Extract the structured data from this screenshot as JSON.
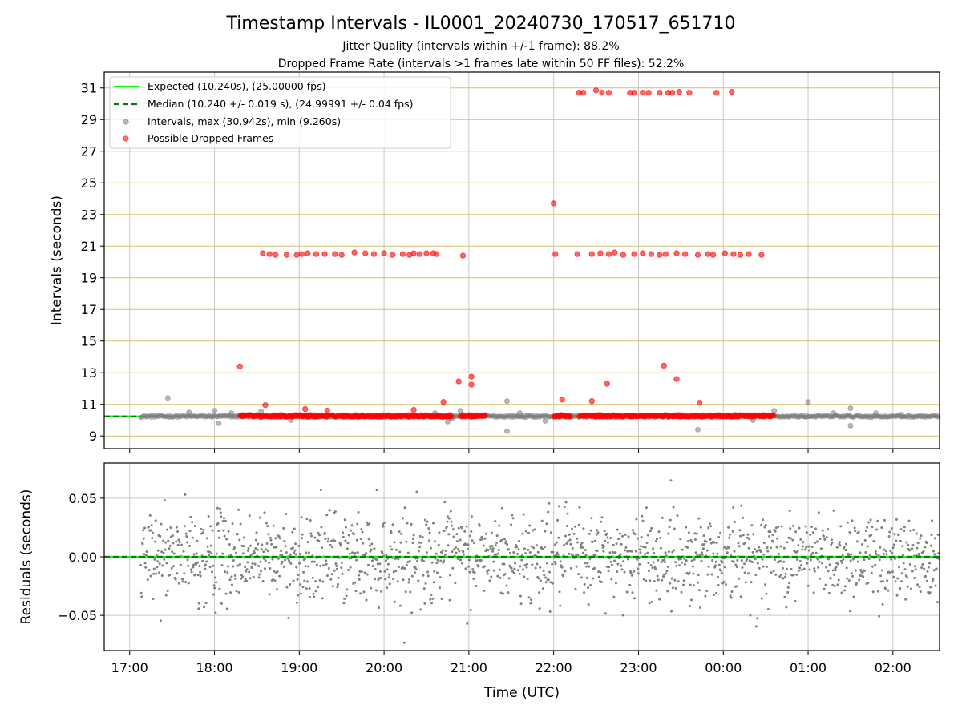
{
  "chart_data": [
    {
      "type": "scatter",
      "title": "Timestamp Intervals - IL0001_20240730_170517_651710",
      "subtitle_1": "Jitter Quality (intervals within +/-1 frame): 88.2%",
      "subtitle_2": "Dropped Frame Rate (intervals >1 frames late within 50 FF files): 52.2%",
      "xlabel": "",
      "ylabel": "Intervals (seconds)",
      "xlim": [
        16.7,
        26.55
      ],
      "ylim": [
        8.2,
        32.0
      ],
      "yticks": [
        9,
        11,
        13,
        15,
        17,
        19,
        21,
        23,
        25,
        27,
        29,
        31
      ],
      "xticks": [
        17,
        18,
        19,
        20,
        21,
        22,
        23,
        24,
        25,
        26
      ],
      "grid": true,
      "legend_position": "top-left",
      "legend": [
        "Expected (10.240s), (25.00000 fps)",
        "Median (10.240 +/- 0.019 s), (24.99991 +/- 0.04 fps)",
        "Intervals, max (30.942s), min (9.260s)",
        "Possible Dropped Frames"
      ],
      "expected_interval": 10.24,
      "median_interval": 10.24,
      "series": [
        {
          "name": "Intervals, max (30.942s), min (9.260s)",
          "color": "#808080",
          "baseline": 10.24,
          "baseline_x_range": [
            17.13,
            26.55
          ],
          "points": [
            [
              17.45,
              11.4
            ],
            [
              17.7,
              10.5
            ],
            [
              18.0,
              10.6
            ],
            [
              18.05,
              9.8
            ],
            [
              18.2,
              10.45
            ],
            [
              18.55,
              10.55
            ],
            [
              18.9,
              10.0
            ],
            [
              20.6,
              10.45
            ],
            [
              20.75,
              9.9
            ],
            [
              20.8,
              10.1
            ],
            [
              20.9,
              10.6
            ],
            [
              21.45,
              11.2
            ],
            [
              21.45,
              9.3
            ],
            [
              21.6,
              10.45
            ],
            [
              21.9,
              9.95
            ],
            [
              23.7,
              9.4
            ],
            [
              24.35,
              10.0
            ],
            [
              24.6,
              10.6
            ],
            [
              25.0,
              11.15
            ],
            [
              25.3,
              10.45
            ],
            [
              25.5,
              10.75
            ],
            [
              25.5,
              9.65
            ],
            [
              25.8,
              10.45
            ],
            [
              26.1,
              10.35
            ]
          ]
        },
        {
          "name": "Possible Dropped Frames",
          "color": "#ff0000",
          "baseline": 10.27,
          "baseline_x_ranges": [
            [
              18.3,
              20.8
            ],
            [
              20.9,
              21.2
            ],
            [
              22.0,
              22.2
            ],
            [
              22.3,
              24.6
            ]
          ],
          "points": [
            [
              18.3,
              13.4
            ],
            [
              18.6,
              10.95
            ],
            [
              19.07,
              10.7
            ],
            [
              19.33,
              10.6
            ],
            [
              20.35,
              10.65
            ],
            [
              20.7,
              11.15
            ],
            [
              20.88,
              12.45
            ],
            [
              21.03,
              12.75
            ],
            [
              21.03,
              12.25
            ],
            [
              22.0,
              23.7
            ],
            [
              22.1,
              11.3
            ],
            [
              22.45,
              11.2
            ],
            [
              22.63,
              12.3
            ],
            [
              23.3,
              13.45
            ],
            [
              23.45,
              12.6
            ],
            [
              23.72,
              11.1
            ],
            [
              18.57,
              20.55
            ],
            [
              18.65,
              20.5
            ],
            [
              18.72,
              20.45
            ],
            [
              18.85,
              20.45
            ],
            [
              18.97,
              20.45
            ],
            [
              19.03,
              20.5
            ],
            [
              19.1,
              20.55
            ],
            [
              19.2,
              20.5
            ],
            [
              19.3,
              20.5
            ],
            [
              19.42,
              20.5
            ],
            [
              19.5,
              20.45
            ],
            [
              19.65,
              20.6
            ],
            [
              19.78,
              20.55
            ],
            [
              19.88,
              20.5
            ],
            [
              20.0,
              20.55
            ],
            [
              20.1,
              20.45
            ],
            [
              20.22,
              20.5
            ],
            [
              20.3,
              20.45
            ],
            [
              20.35,
              20.55
            ],
            [
              20.42,
              20.5
            ],
            [
              20.5,
              20.55
            ],
            [
              20.58,
              20.55
            ],
            [
              20.62,
              20.5
            ],
            [
              20.93,
              20.4
            ],
            [
              22.02,
              20.5
            ],
            [
              22.28,
              20.5
            ],
            [
              22.45,
              20.5
            ],
            [
              22.55,
              20.55
            ],
            [
              22.65,
              20.5
            ],
            [
              22.72,
              20.6
            ],
            [
              22.82,
              20.45
            ],
            [
              22.95,
              20.5
            ],
            [
              23.05,
              20.55
            ],
            [
              23.15,
              20.5
            ],
            [
              23.25,
              20.45
            ],
            [
              23.32,
              20.5
            ],
            [
              23.45,
              20.55
            ],
            [
              23.55,
              20.5
            ],
            [
              23.7,
              20.45
            ],
            [
              23.82,
              20.5
            ],
            [
              23.88,
              20.45
            ],
            [
              24.02,
              20.55
            ],
            [
              24.12,
              20.5
            ],
            [
              24.2,
              20.45
            ],
            [
              24.3,
              20.5
            ],
            [
              24.45,
              20.45
            ],
            [
              22.3,
              30.7
            ],
            [
              22.35,
              30.7
            ],
            [
              22.5,
              30.85
            ],
            [
              22.57,
              30.7
            ],
            [
              22.65,
              30.7
            ],
            [
              22.9,
              30.7
            ],
            [
              22.95,
              30.7
            ],
            [
              23.05,
              30.7
            ],
            [
              23.12,
              30.7
            ],
            [
              23.25,
              30.7
            ],
            [
              23.35,
              30.7
            ],
            [
              23.4,
              30.7
            ],
            [
              23.48,
              30.75
            ],
            [
              23.6,
              30.7
            ],
            [
              23.92,
              30.7
            ],
            [
              24.1,
              30.75
            ]
          ]
        },
        {
          "name": "Expected (10.240s), (25.00000 fps)",
          "color": "#00ff00",
          "style": "solid",
          "y": 10.24
        },
        {
          "name": "Median (10.240 +/- 0.019 s), (24.99991 +/- 0.04 fps)",
          "color": "#008000",
          "style": "dashed",
          "y": 10.24
        }
      ]
    },
    {
      "type": "scatter",
      "xlabel": "Time (UTC)",
      "ylabel": "Residuals (seconds)",
      "xlim": [
        16.7,
        26.55
      ],
      "ylim": [
        -0.08,
        0.08
      ],
      "yticks": [
        -0.05,
        0.0,
        0.05
      ],
      "ytick_labels": [
        "−0.05",
        "0.00",
        "0.05"
      ],
      "xticks": [
        17,
        18,
        19,
        20,
        21,
        22,
        23,
        24,
        25,
        26
      ],
      "xtick_labels": [
        "17:00",
        "18:00",
        "19:00",
        "20:00",
        "21:00",
        "22:00",
        "23:00",
        "00:00",
        "01:00",
        "02:00"
      ],
      "grid": true,
      "series": [
        {
          "name": "",
          "color": "#808080",
          "x_range": [
            17.13,
            26.55
          ],
          "approx_count": 1600,
          "std": 0.019,
          "description_values": "residuals scattered around 0.00 with spread about +/-0.019 s"
        },
        {
          "name": "",
          "color": "#00ff00",
          "style": "solid",
          "y": 0.0
        },
        {
          "name": "",
          "color": "#008000",
          "style": "dashed",
          "y": 0.0
        }
      ]
    }
  ]
}
